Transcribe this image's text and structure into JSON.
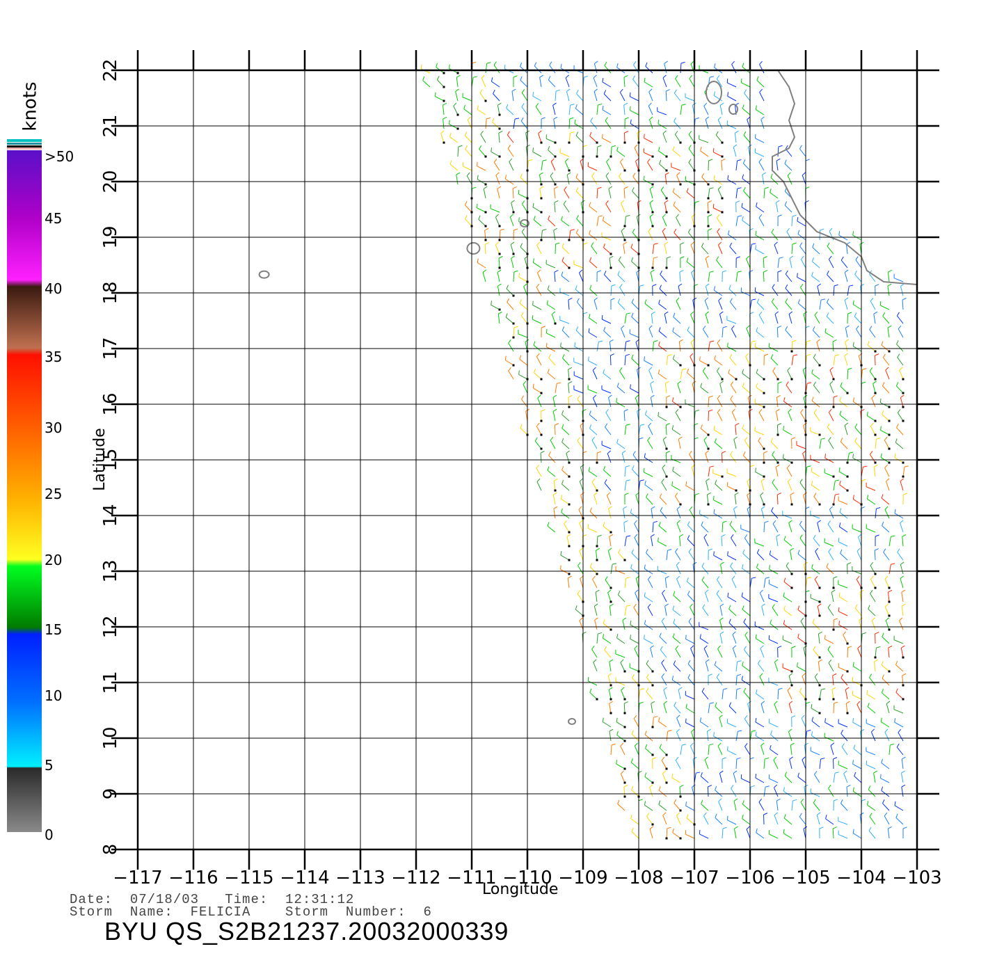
{
  "map": {
    "x_ticks": [
      "−117",
      "−116",
      "−115",
      "−114",
      "−113",
      "−112",
      "−111",
      "−110",
      "−109",
      "−108",
      "−107",
      "−106",
      "−105",
      "−104",
      "−103"
    ],
    "y_ticks": [
      "8",
      "9",
      "10",
      "11",
      "12",
      "13",
      "14",
      "15",
      "16",
      "17",
      "18",
      "19",
      "20",
      "21",
      "22"
    ],
    "xlabel": "Longitude",
    "ylabel": "Latitude",
    "lon_range": [
      -117,
      -103
    ],
    "lat_range": [
      8,
      22
    ],
    "grid": true
  },
  "legend": {
    "unit": "knots",
    "labels": [
      "0",
      "5",
      "10",
      "15",
      "20",
      "25",
      "30",
      "35",
      "40",
      "45",
      ">50"
    ],
    "colors": {
      "0-5": "#3a3a3a",
      "5-10": "#00e5ff",
      "10-15": "#0033ff",
      "15-20": "#00cc00",
      "20-25": "#ffd400",
      "25-30": "#ff7a00",
      "30-35": "#ff2a00",
      "35-40": "#8a4a2a",
      "40-45": "#ff00ff",
      "45-50": "#7a00d0"
    }
  },
  "footer": {
    "date_line": "Date:  07/18/03   Time:  12:31:12",
    "storm_line": "Storm  Name:  FELICIA    Storm  Number:  6",
    "title": "BYU  QS_S2B21237.20032000339"
  }
}
